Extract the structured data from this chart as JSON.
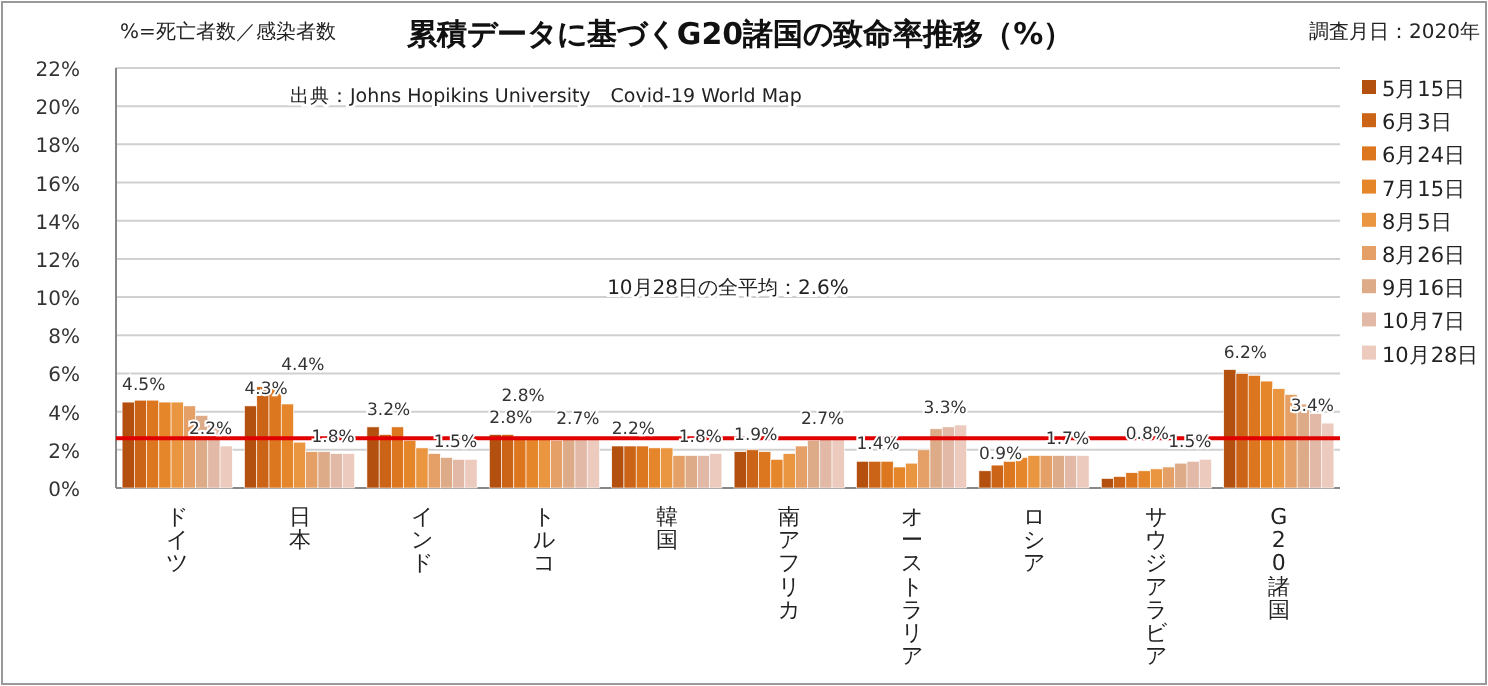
{
  "chart_data": {
    "type": "bar",
    "title": "累積データに基づくG20諸国の致命率推移（%）",
    "annotations": [
      "%=死亡者数／感染者数",
      "出典：Johns Hopikins University　Covid-19 World Map",
      "10月28日の全平均：2.6%"
    ],
    "legend_title": "調査月日：2020年",
    "legend": "right",
    "grid": "y",
    "categories": [
      "ドイツ",
      "日本",
      "インド",
      "トルコ",
      "韓国",
      "南アフリカ",
      "オーストラリア",
      "ロシア",
      "サウジアラビア",
      "G20諸国"
    ],
    "ylim": [
      0,
      22
    ],
    "yticks": [
      {
        "value": 0,
        "label": "0%"
      },
      {
        "value": 2,
        "label": "2%"
      },
      {
        "value": 4,
        "label": "4%"
      },
      {
        "value": 6,
        "label": "6%"
      },
      {
        "value": 8,
        "label": "8%"
      },
      {
        "value": 10,
        "label": "10%"
      },
      {
        "value": 12,
        "label": "12%"
      },
      {
        "value": 14,
        "label": "14%"
      },
      {
        "value": 16,
        "label": "16%"
      },
      {
        "value": 18,
        "label": "18%"
      },
      {
        "value": 20,
        "label": "20%"
      },
      {
        "value": 22,
        "label": "22%"
      }
    ],
    "ref_lines": [
      {
        "axis": "y",
        "value": 2.6,
        "color": "#e00000"
      }
    ],
    "series": [
      {
        "name": "5月15日",
        "color": "#b4500f",
        "values": [
          4.5,
          4.3,
          3.2,
          2.8,
          2.2,
          1.9,
          1.4,
          0.9,
          0.5,
          6.2
        ],
        "value_labels": [
          "4.5%",
          "4.3%",
          "3.2%",
          "2.8%",
          "2.2%",
          "1.9%",
          "1.4%",
          "0.9%",
          null,
          "6.2%"
        ]
      },
      {
        "name": "6月3日",
        "color": "#cc6418",
        "values": [
          4.6,
          5.3,
          2.8,
          2.8,
          2.2,
          2.0,
          1.4,
          1.2,
          0.6,
          6.0
        ],
        "value_labels": [
          null,
          null,
          null,
          "2.8%",
          null,
          null,
          null,
          null,
          null,
          null
        ]
      },
      {
        "name": "6月24日",
        "color": "#dc761f",
        "values": [
          4.6,
          5.3,
          3.2,
          2.7,
          2.2,
          1.9,
          1.4,
          1.4,
          0.8,
          5.9
        ],
        "value_labels": [
          null,
          null,
          null,
          null,
          null,
          null,
          null,
          null,
          "0.8%",
          null
        ]
      },
      {
        "name": "7月15日",
        "color": "#e6862a",
        "values": [
          4.5,
          4.4,
          2.5,
          2.6,
          2.1,
          1.5,
          1.1,
          1.6,
          0.9,
          5.6
        ],
        "value_labels": [
          null,
          "4.4%",
          null,
          null,
          null,
          null,
          null,
          null,
          null,
          null
        ]
      },
      {
        "name": "8月5日",
        "color": "#ea9640",
        "values": [
          4.5,
          2.4,
          2.1,
          2.6,
          2.1,
          1.8,
          1.3,
          1.7,
          1.0,
          5.2
        ],
        "value_labels": [
          null,
          null,
          null,
          null,
          null,
          null,
          null,
          null,
          null,
          null
        ]
      },
      {
        "name": "8月26日",
        "color": "#e4a066",
        "values": [
          4.3,
          1.9,
          1.8,
          2.5,
          1.7,
          2.2,
          2.0,
          1.7,
          1.1,
          4.9
        ],
        "value_labels": [
          null,
          null,
          null,
          null,
          null,
          null,
          null,
          null,
          null,
          null
        ]
      },
      {
        "name": "9月16日",
        "color": "#deab88",
        "values": [
          3.8,
          1.9,
          1.6,
          2.6,
          1.7,
          2.5,
          3.1,
          1.7,
          1.3,
          4.4
        ],
        "value_labels": [
          null,
          null,
          null,
          null,
          null,
          null,
          null,
          null,
          null,
          null
        ]
      },
      {
        "name": "10月7日",
        "color": "#e2b8a6",
        "values": [
          3.3,
          1.8,
          1.5,
          2.7,
          1.7,
          2.7,
          3.2,
          1.7,
          1.4,
          3.9
        ],
        "value_labels": [
          null,
          null,
          null,
          null,
          null,
          null,
          null,
          null,
          null,
          null
        ]
      },
      {
        "name": "10月28日",
        "color": "#eccabe",
        "values": [
          2.2,
          1.8,
          1.5,
          2.7,
          1.8,
          2.7,
          3.3,
          1.7,
          1.5,
          3.4
        ],
        "value_labels": [
          "2.2%",
          "1.8%",
          "1.5%",
          "2.7%",
          "1.8%",
          "2.7%",
          "3.3%",
          "1.7%",
          "1.5%",
          "3.4%"
        ]
      }
    ]
  }
}
